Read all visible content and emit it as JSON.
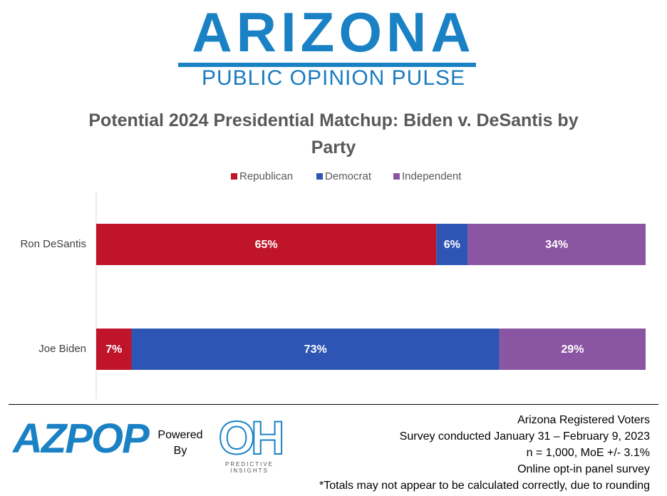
{
  "header": {
    "brand": "ARIZONA",
    "tagline": "PUBLIC OPINION PULSE"
  },
  "chart_data": {
    "type": "bar",
    "orientation": "horizontal",
    "stacking": "percent",
    "title": "Potential 2024 Presidential Matchup: Biden v. DeSantis by Party",
    "categories": [
      "Ron DeSantis",
      "Joe Biden"
    ],
    "series": [
      {
        "name": "Republican",
        "color": "#c0142a",
        "values": [
          65,
          7
        ],
        "value_labels": [
          "65%",
          "7%"
        ]
      },
      {
        "name": "Democrat",
        "color": "#2f55b4",
        "values": [
          6,
          73
        ],
        "value_labels": [
          "6%",
          "73%"
        ]
      },
      {
        "name": "Independent",
        "color": "#8a55a3",
        "values": [
          34,
          29
        ],
        "value_labels": [
          "34%",
          "29%"
        ]
      }
    ],
    "legend": "top"
  },
  "footer": {
    "logo": "AZPOP",
    "powered_by": "Powered By",
    "partner_logo": "OH",
    "partner_name": "PREDICTIVE INSIGHTS",
    "notes": [
      "Arizona Registered Voters",
      "Survey conducted January 31 – February 9, 2023",
      "n = 1,000, MoE +/- 3.1%",
      "Online opt-in panel survey",
      "*Totals may not appear to be calculated correctly, due to rounding"
    ]
  }
}
